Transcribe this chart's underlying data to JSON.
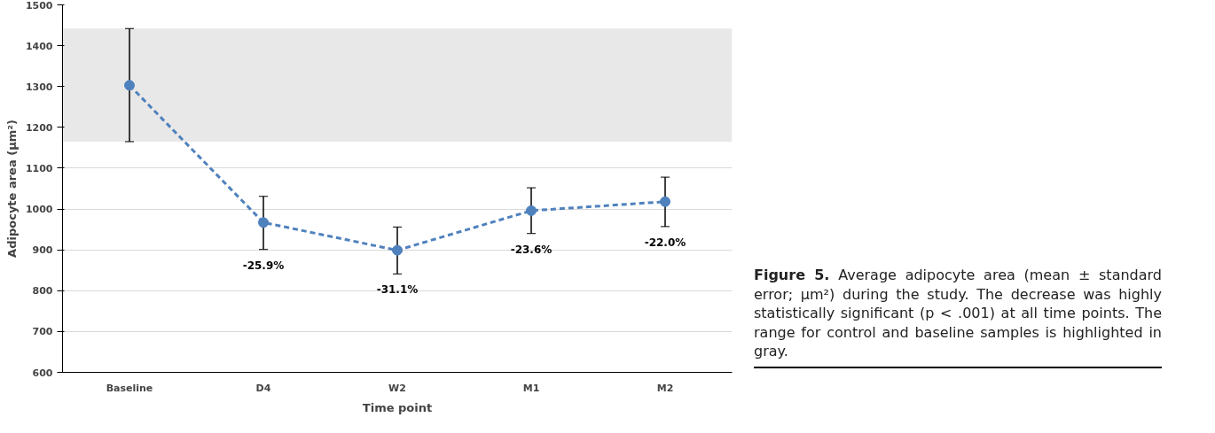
{
  "chart_data": {
    "type": "line",
    "xlabel": "Time point",
    "ylabel": "Adipocyte area (μm²)",
    "categories": [
      "Baseline",
      "D4",
      "W2",
      "M1",
      "M2"
    ],
    "series": [
      {
        "color": "#4f81bd",
        "values": [
          1303,
          967,
          899,
          996,
          1018
        ],
        "errors": [
          [
            1165,
            1442
          ],
          [
            901,
            1031
          ],
          [
            841,
            956
          ],
          [
            940,
            1052
          ],
          [
            957,
            1078
          ]
        ]
      }
    ],
    "ylim": [
      600,
      1500
    ],
    "yticks": [
      600,
      700,
      800,
      900,
      1000,
      1100,
      1200,
      1300,
      1400,
      1500
    ],
    "bands": [
      {
        "axis": "y",
        "from": 1165,
        "to": 1442,
        "color": "#e8e8e8"
      }
    ],
    "annotations": [
      "Figure 5.",
      "Average adipocyte area (mean ± standard error; μm²) during the study. The decrease was highly statistically significant (p < .001) at all time points. The range for control and baseline samples is highlighted in gray.",
      "-25.9%",
      "-31.1%",
      "-23.6%",
      "-22.0%"
    ],
    "grid": "y",
    "marker": "circle",
    "line_style": "dashed"
  }
}
